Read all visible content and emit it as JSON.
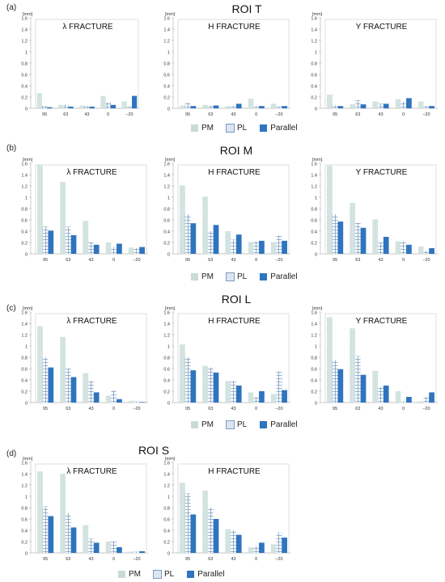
{
  "colors": {
    "PM": "#c9dbd9",
    "PL_grid": "#7c9bc0",
    "Parallel": "#2f74bf",
    "axis": "#bbbbbb",
    "gridline": "#e6e6e6",
    "frame": "#d7d7d7"
  },
  "icons": {
    "PM": "pattern-dots-light",
    "PL": "pattern-grid",
    "Parallel": "solid-fill"
  },
  "figure": {
    "sections": [
      {
        "label": "(a)",
        "title": "ROI T",
        "legend": [
          "PM",
          "PL",
          "Parallel"
        ]
      },
      {
        "label": "(b)",
        "title": "ROI M",
        "legend": [
          "PM",
          "PL",
          "Parallel"
        ]
      },
      {
        "label": "(c)",
        "title": "ROI L",
        "legend": [
          "PM",
          "PL",
          "Parallel"
        ]
      },
      {
        "label": "(d)",
        "title": "ROI S",
        "legend": [
          "PM",
          "PL",
          "Parallel"
        ]
      }
    ]
  },
  "chart_data": [
    {
      "type": "bar",
      "section": "ROI T",
      "title": "λ FRACTURE",
      "ylabel": "[mm]",
      "ylim": [
        0,
        1.6
      ],
      "yticks": [
        "0",
        "0.2",
        "0.4",
        "0.6",
        "0.8",
        "1",
        "1.2",
        "1.4",
        "1.6"
      ],
      "categories": [
        "95",
        "63",
        "43",
        "0",
        "−20"
      ],
      "series": [
        {
          "name": "PM",
          "values": [
            0.27,
            0.06,
            0.05,
            0.22,
            0.12
          ]
        },
        {
          "name": "PL",
          "values": [
            0.04,
            0.07,
            0.04,
            0.1,
            0.03
          ]
        },
        {
          "name": "Parallel",
          "values": [
            0.02,
            0.03,
            0.03,
            0.06,
            0.22
          ]
        }
      ]
    },
    {
      "type": "bar",
      "section": "ROI T",
      "title": "H  FRACTURE",
      "ylabel": "[mm]",
      "ylim": [
        0,
        1.6
      ],
      "yticks": [
        "0",
        "0.2",
        "0.4",
        "0.6",
        "0.8",
        "1",
        "1.2",
        "1.4",
        "1.6"
      ],
      "categories": [
        "95",
        "63",
        "43",
        "0",
        "−20"
      ],
      "series": [
        {
          "name": "PM",
          "values": [
            0.05,
            0.06,
            0.04,
            0.17,
            0.08
          ]
        },
        {
          "name": "PL",
          "values": [
            0.1,
            0.05,
            0.04,
            0.03,
            0.03
          ]
        },
        {
          "name": "Parallel",
          "values": [
            0.04,
            0.05,
            0.08,
            0.04,
            0.04
          ]
        }
      ]
    },
    {
      "type": "bar",
      "section": "ROI T",
      "title": "Y  FRACTURE",
      "ylabel": "[mm]",
      "ylim": [
        0,
        1.6
      ],
      "yticks": [
        "0",
        "0.2",
        "0.4",
        "0.6",
        "0.8",
        "1",
        "1.2",
        "1.4",
        "1.6"
      ],
      "categories": [
        "95",
        "63",
        "43",
        "0",
        "−20"
      ],
      "series": [
        {
          "name": "PM",
          "values": [
            0.24,
            0.07,
            0.12,
            0.16,
            0.12
          ]
        },
        {
          "name": "PL",
          "values": [
            0.05,
            0.14,
            0.08,
            0.12,
            0.04
          ]
        },
        {
          "name": "Parallel",
          "values": [
            0.04,
            0.07,
            0.08,
            0.18,
            0.04
          ]
        }
      ]
    },
    {
      "type": "bar",
      "section": "ROI M",
      "title": "λ FRACTURE",
      "ylabel": "[mm]",
      "ylim": [
        0,
        1.6
      ],
      "yticks": [
        "0",
        "0.2",
        "0.4",
        "0.6",
        "0.8",
        "1",
        "1.2",
        "1.4",
        "1.6"
      ],
      "categories": [
        "95",
        "63",
        "43",
        "0",
        "−20"
      ],
      "series": [
        {
          "name": "PM",
          "values": [
            1.58,
            1.27,
            0.58,
            0.2,
            0.11
          ]
        },
        {
          "name": "PL",
          "values": [
            0.48,
            0.48,
            0.2,
            0.12,
            0.1
          ]
        },
        {
          "name": "Parallel",
          "values": [
            0.41,
            0.33,
            0.16,
            0.18,
            0.12
          ]
        }
      ]
    },
    {
      "type": "bar",
      "section": "ROI M",
      "title": "H  FRACTURE",
      "ylabel": "[mm]",
      "ylim": [
        0,
        1.6
      ],
      "yticks": [
        "0",
        "0.2",
        "0.4",
        "0.6",
        "0.8",
        "1",
        "1.2",
        "1.4",
        "1.6"
      ],
      "categories": [
        "95",
        "63",
        "43",
        "0",
        "−20"
      ],
      "series": [
        {
          "name": "PM",
          "values": [
            1.21,
            1.01,
            0.4,
            0.21,
            0.21
          ]
        },
        {
          "name": "PL",
          "values": [
            0.7,
            0.4,
            0.25,
            0.22,
            0.32
          ]
        },
        {
          "name": "Parallel",
          "values": [
            0.54,
            0.51,
            0.34,
            0.23,
            0.23
          ]
        }
      ]
    },
    {
      "type": "bar",
      "section": "ROI M",
      "title": "Y  FRACTURE",
      "ylabel": "[mm]",
      "ylim": [
        0,
        1.6
      ],
      "yticks": [
        "0",
        "0.2",
        "0.4",
        "0.6",
        "0.8",
        "1",
        "1.2",
        "1.4",
        "1.6"
      ],
      "categories": [
        "95",
        "63",
        "43",
        "0",
        "−20"
      ],
      "series": [
        {
          "name": "PM",
          "values": [
            1.56,
            0.9,
            0.61,
            0.22,
            0.13
          ]
        },
        {
          "name": "PL",
          "values": [
            0.7,
            0.55,
            0.2,
            0.22,
            0.05
          ]
        },
        {
          "name": "Parallel",
          "values": [
            0.57,
            0.46,
            0.3,
            0.16,
            0.1
          ]
        }
      ]
    },
    {
      "type": "bar",
      "section": "ROI L",
      "title": "λ FRACTURE",
      "ylabel": "[mm]",
      "ylim": [
        0,
        1.6
      ],
      "yticks": [
        "0",
        "0.2",
        "0.4",
        "0.6",
        "0.8",
        "1",
        "1.2",
        "1.4",
        "1.6"
      ],
      "categories": [
        "95",
        "63",
        "43",
        "0",
        "−20"
      ],
      "series": [
        {
          "name": "PM",
          "values": [
            1.35,
            1.16,
            0.52,
            0.12,
            0.03
          ]
        },
        {
          "name": "PL",
          "values": [
            0.8,
            0.6,
            0.38,
            0.22,
            0.02
          ]
        },
        {
          "name": "Parallel",
          "values": [
            0.62,
            0.45,
            0.18,
            0.06,
            0.01
          ]
        }
      ]
    },
    {
      "type": "bar",
      "section": "ROI L",
      "title": "H  FRACTURE",
      "ylabel": "[mm]",
      "ylim": [
        0,
        1.6
      ],
      "yticks": [
        "0",
        "0.2",
        "0.4",
        "0.6",
        "0.8",
        "1",
        "1.2",
        "1.4",
        "1.6"
      ],
      "categories": [
        "95",
        "63",
        "43",
        "0",
        "−20"
      ],
      "series": [
        {
          "name": "PM",
          "values": [
            1.03,
            0.65,
            0.38,
            0.18,
            0.15
          ]
        },
        {
          "name": "PL",
          "values": [
            0.8,
            0.62,
            0.38,
            0.1,
            0.55
          ]
        },
        {
          "name": "Parallel",
          "values": [
            0.57,
            0.53,
            0.3,
            0.2,
            0.22
          ]
        }
      ]
    },
    {
      "type": "bar",
      "section": "ROI L",
      "title": "Y  FRACTURE",
      "ylabel": "[mm]",
      "ylim": [
        0,
        1.6
      ],
      "yticks": [
        "0",
        "0.2",
        "0.4",
        "0.6",
        "0.8",
        "1",
        "1.2",
        "1.4",
        "1.6"
      ],
      "categories": [
        "95",
        "63",
        "43",
        "0",
        "−20"
      ],
      "series": [
        {
          "name": "PM",
          "values": [
            1.51,
            1.31,
            0.56,
            0.2,
            0.02
          ]
        },
        {
          "name": "PL",
          "values": [
            0.75,
            0.82,
            0.28,
            0.02,
            0.1
          ]
        },
        {
          "name": "Parallel",
          "values": [
            0.59,
            0.49,
            0.3,
            0.1,
            0.18
          ]
        }
      ]
    },
    {
      "type": "bar",
      "section": "ROI S",
      "title": "λ FRACTURE",
      "ylabel": "[mm]",
      "ylim": [
        0,
        1.6
      ],
      "yticks": [
        "0",
        "0.2",
        "0.4",
        "0.6",
        "0.8",
        "1",
        "1.2",
        "1.4",
        "1.6"
      ],
      "categories": [
        "95",
        "63",
        "43",
        "0",
        "−20"
      ],
      "series": [
        {
          "name": "PM",
          "values": [
            1.44,
            1.4,
            0.49,
            0.2,
            0.02
          ]
        },
        {
          "name": "PL",
          "values": [
            0.82,
            0.7,
            0.25,
            0.2,
            0.02
          ]
        },
        {
          "name": "Parallel",
          "values": [
            0.65,
            0.45,
            0.18,
            0.1,
            0.03
          ]
        }
      ]
    },
    {
      "type": "bar",
      "section": "ROI S",
      "title": "H  FRACTURE",
      "ylabel": "[mm]",
      "ylim": [
        0,
        1.6
      ],
      "yticks": [
        "0",
        "0.2",
        "0.4",
        "0.6",
        "0.8",
        "1",
        "1.2",
        "1.4",
        "1.6"
      ],
      "categories": [
        "95",
        "63",
        "43",
        "0",
        "−20"
      ],
      "series": [
        {
          "name": "PM",
          "values": [
            1.24,
            1.1,
            0.42,
            0.1,
            0.15
          ]
        },
        {
          "name": "PL",
          "values": [
            1.05,
            0.8,
            0.4,
            0.12,
            0.36
          ]
        },
        {
          "name": "Parallel",
          "values": [
            0.68,
            0.6,
            0.32,
            0.18,
            0.27
          ]
        }
      ]
    }
  ]
}
